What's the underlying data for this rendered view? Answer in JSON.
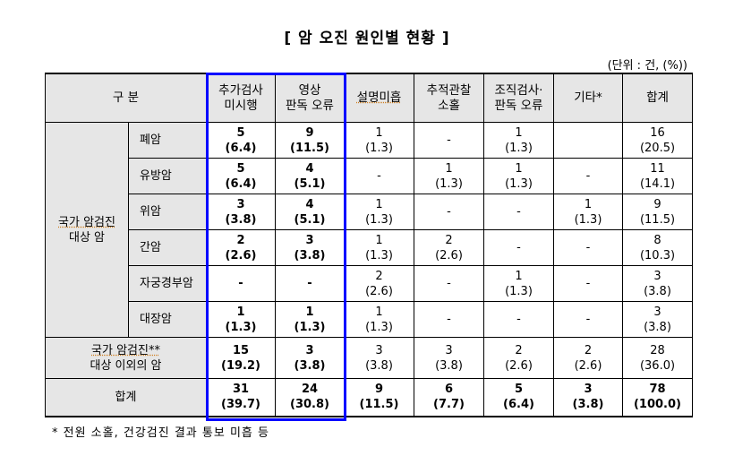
{
  "title": "[ 암 오진 원인별 현황 ]",
  "unit": "(단위 : 건, (%))",
  "table": {
    "header": {
      "category": "구 분",
      "columns": [
        {
          "line1": "추가검사",
          "line2": "미시행"
        },
        {
          "line1": "영상",
          "line2": "판독 오류"
        },
        {
          "line1": "설명미흡",
          "line2": ""
        },
        {
          "line1": "추적관찰",
          "line2": "소홀"
        },
        {
          "line1": "조직검사·",
          "line2": "판독 오류"
        },
        {
          "line1": "기타*",
          "line2": ""
        },
        {
          "line1": "합계",
          "line2": ""
        }
      ]
    },
    "group_label": {
      "line1": "국가 암검진",
      "line2": "대상 암"
    },
    "rows": [
      {
        "name": "폐암",
        "cells": [
          {
            "n": "5",
            "p": "(6.4)"
          },
          {
            "n": "9",
            "p": "(11.5)"
          },
          {
            "n": "1",
            "p": "(1.3)"
          },
          {
            "n": "-",
            "p": ""
          },
          {
            "n": "1",
            "p": "(1.3)"
          },
          {
            "n": "",
            "p": ""
          },
          {
            "n": "16",
            "p": "(20.5)"
          }
        ]
      },
      {
        "name": "유방암",
        "cells": [
          {
            "n": "5",
            "p": "(6.4)"
          },
          {
            "n": "4",
            "p": "(5.1)"
          },
          {
            "n": "-",
            "p": ""
          },
          {
            "n": "1",
            "p": "(1.3)"
          },
          {
            "n": "1",
            "p": "(1.3)"
          },
          {
            "n": "-",
            "p": ""
          },
          {
            "n": "11",
            "p": "(14.1)"
          }
        ]
      },
      {
        "name": "위암",
        "cells": [
          {
            "n": "3",
            "p": "(3.8)"
          },
          {
            "n": "4",
            "p": "(5.1)"
          },
          {
            "n": "1",
            "p": "(1.3)"
          },
          {
            "n": "-",
            "p": ""
          },
          {
            "n": "-",
            "p": ""
          },
          {
            "n": "1",
            "p": "(1.3)"
          },
          {
            "n": "9",
            "p": "(11.5)"
          }
        ]
      },
      {
        "name": "간암",
        "cells": [
          {
            "n": "2",
            "p": "(2.6)"
          },
          {
            "n": "3",
            "p": "(3.8)"
          },
          {
            "n": "1",
            "p": "(1.3)"
          },
          {
            "n": "2",
            "p": "(2.6)"
          },
          {
            "n": "-",
            "p": ""
          },
          {
            "n": "-",
            "p": ""
          },
          {
            "n": "8",
            "p": "(10.3)"
          }
        ]
      },
      {
        "name": "자궁경부암",
        "cells": [
          {
            "n": "-",
            "p": ""
          },
          {
            "n": "-",
            "p": ""
          },
          {
            "n": "2",
            "p": "(2.6)"
          },
          {
            "n": "-",
            "p": ""
          },
          {
            "n": "1",
            "p": "(1.3)"
          },
          {
            "n": "-",
            "p": ""
          },
          {
            "n": "3",
            "p": "(3.8)"
          }
        ]
      },
      {
        "name": "대장암",
        "cells": [
          {
            "n": "1",
            "p": "(1.3)"
          },
          {
            "n": "1",
            "p": "(1.3)"
          },
          {
            "n": "1",
            "p": "(1.3)"
          },
          {
            "n": "-",
            "p": ""
          },
          {
            "n": "-",
            "p": ""
          },
          {
            "n": "-",
            "p": ""
          },
          {
            "n": "3",
            "p": "(3.8)"
          }
        ]
      }
    ],
    "other_row": {
      "label_line1": "국가 암검진**",
      "label_line2": "대상 이외의 암",
      "cells": [
        {
          "n": "15",
          "p": "(19.2)"
        },
        {
          "n": "3",
          "p": "(3.8)"
        },
        {
          "n": "3",
          "p": "(3.8)"
        },
        {
          "n": "3",
          "p": "(3.8)"
        },
        {
          "n": "2",
          "p": "(2.6)"
        },
        {
          "n": "2",
          "p": "(2.6)"
        },
        {
          "n": "28",
          "p": "(36.0)"
        }
      ]
    },
    "total_row": {
      "label": "합계",
      "cells": [
        {
          "n": "31",
          "p": "(39.7)"
        },
        {
          "n": "24",
          "p": "(30.8)"
        },
        {
          "n": "9",
          "p": "(11.5)"
        },
        {
          "n": "6",
          "p": "(7.7)"
        },
        {
          "n": "5",
          "p": "(6.4)"
        },
        {
          "n": "3",
          "p": "(3.8)"
        },
        {
          "n": "78",
          "p": "(100.0)"
        }
      ]
    }
  },
  "footnote": "* 전원 소홀, 건강검진 결과 통보 미흡 등",
  "colors": {
    "highlight_border": "#0000ff",
    "header_bg": "#e6e6e6"
  }
}
